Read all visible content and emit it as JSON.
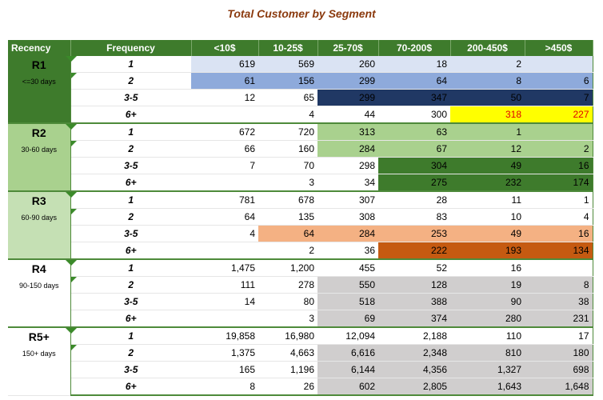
{
  "title": "Total Customer by Segment",
  "headers": [
    "Recency",
    "Frequency",
    "<10$",
    "10-25$",
    "25-70$",
    "70-200$",
    "200-450$",
    ">450$"
  ],
  "groups": [
    {
      "code": "R1",
      "days": "<=30 days",
      "label_bg": "#3e7b2c",
      "label_color": "#000000",
      "rows": [
        {
          "freq": "1",
          "values": [
            "619",
            "569",
            "260",
            "18",
            "2",
            ""
          ],
          "bg": [
            "#dae3f3",
            "#dae3f3",
            "#dae3f3",
            "#dae3f3",
            "#dae3f3",
            "#dae3f3"
          ],
          "fg": [
            "",
            "",
            "",
            "",
            "",
            ""
          ]
        },
        {
          "freq": "2",
          "values": [
            "61",
            "156",
            "299",
            "64",
            "8",
            "6"
          ],
          "bg": [
            "#8eaadb",
            "#8eaadb",
            "#8eaadb",
            "#8eaadb",
            "#8eaadb",
            "#8eaadb"
          ],
          "fg": [
            "",
            "",
            "",
            "",
            "",
            ""
          ]
        },
        {
          "freq": "3-5",
          "values": [
            "12",
            "65",
            "299",
            "347",
            "50",
            "7"
          ],
          "bg": [
            "",
            "",
            "#203864",
            "#203864",
            "#203864",
            "#203864"
          ],
          "fg": [
            "",
            "",
            "",
            "",
            "",
            ""
          ]
        },
        {
          "freq": "6+",
          "values": [
            "",
            "4",
            "44",
            "300",
            "318",
            "227"
          ],
          "bg": [
            "",
            "",
            "",
            "",
            "#ffff00",
            "#ffff00"
          ],
          "fg": [
            "",
            "",
            "",
            "",
            "red",
            "red"
          ]
        }
      ]
    },
    {
      "code": "R2",
      "days": "30-60 days",
      "label_bg": "#a9d18e",
      "label_color": "#000000",
      "rows": [
        {
          "freq": "1",
          "values": [
            "672",
            "720",
            "313",
            "63",
            "1",
            ""
          ],
          "bg": [
            "",
            "",
            "#a9d18e",
            "#a9d18e",
            "#a9d18e",
            "#a9d18e"
          ],
          "fg": [
            "",
            "",
            "",
            "",
            "",
            ""
          ]
        },
        {
          "freq": "2",
          "values": [
            "66",
            "160",
            "284",
            "67",
            "12",
            "2"
          ],
          "bg": [
            "",
            "",
            "#a9d18e",
            "#a9d18e",
            "#a9d18e",
            "#a9d18e"
          ],
          "fg": [
            "",
            "",
            "",
            "",
            "",
            ""
          ]
        },
        {
          "freq": "3-5",
          "values": [
            "7",
            "70",
            "298",
            "304",
            "49",
            "16"
          ],
          "bg": [
            "",
            "",
            "",
            "#3e7b2c",
            "#3e7b2c",
            "#3e7b2c"
          ],
          "fg": [
            "",
            "",
            "",
            "",
            "",
            ""
          ]
        },
        {
          "freq": "6+",
          "values": [
            "",
            "3",
            "34",
            "275",
            "232",
            "174"
          ],
          "bg": [
            "",
            "",
            "",
            "#3e7b2c",
            "#3e7b2c",
            "#3e7b2c"
          ],
          "fg": [
            "",
            "",
            "",
            "",
            "",
            ""
          ]
        }
      ]
    },
    {
      "code": "R3",
      "days": "60-90 days",
      "label_bg": "#c5e0b4",
      "label_color": "#000000",
      "rows": [
        {
          "freq": "1",
          "values": [
            "781",
            "678",
            "307",
            "28",
            "11",
            "1"
          ],
          "bg": [
            "",
            "",
            "",
            "",
            "",
            ""
          ],
          "fg": [
            "",
            "",
            "",
            "",
            "",
            ""
          ]
        },
        {
          "freq": "2",
          "values": [
            "64",
            "135",
            "308",
            "83",
            "10",
            "4"
          ],
          "bg": [
            "",
            "",
            "",
            "",
            "",
            ""
          ],
          "fg": [
            "",
            "",
            "",
            "",
            "",
            ""
          ]
        },
        {
          "freq": "3-5",
          "values": [
            "4",
            "64",
            "284",
            "253",
            "49",
            "16"
          ],
          "bg": [
            "",
            "#f4b183",
            "#f4b183",
            "#f4b183",
            "#f4b183",
            "#f4b183"
          ],
          "fg": [
            "",
            "",
            "",
            "",
            "",
            ""
          ]
        },
        {
          "freq": "6+",
          "values": [
            "",
            "2",
            "36",
            "222",
            "193",
            "134"
          ],
          "bg": [
            "",
            "",
            "",
            "#c55a11",
            "#c55a11",
            "#c55a11"
          ],
          "fg": [
            "",
            "",
            "",
            "",
            "",
            ""
          ]
        }
      ]
    },
    {
      "code": "R4",
      "days": "90-150 days",
      "label_bg": "#ffffff",
      "label_color": "#000000",
      "rows": [
        {
          "freq": "1",
          "values": [
            "1,475",
            "1,200",
            "455",
            "52",
            "16",
            ""
          ],
          "bg": [
            "",
            "",
            "",
            "",
            "",
            ""
          ],
          "fg": [
            "",
            "",
            "",
            "",
            "",
            ""
          ]
        },
        {
          "freq": "2",
          "values": [
            "111",
            "278",
            "550",
            "128",
            "19",
            "8"
          ],
          "bg": [
            "",
            "",
            "#d0cece",
            "#d0cece",
            "#d0cece",
            "#d0cece"
          ],
          "fg": [
            "",
            "",
            "",
            "",
            "",
            ""
          ]
        },
        {
          "freq": "3-5",
          "values": [
            "14",
            "80",
            "518",
            "388",
            "90",
            "38"
          ],
          "bg": [
            "",
            "",
            "#d0cece",
            "#d0cece",
            "#d0cece",
            "#d0cece"
          ],
          "fg": [
            "",
            "",
            "",
            "",
            "",
            ""
          ]
        },
        {
          "freq": "6+",
          "values": [
            "",
            "3",
            "69",
            "374",
            "280",
            "231"
          ],
          "bg": [
            "",
            "",
            "#d0cece",
            "#d0cece",
            "#d0cece",
            "#d0cece"
          ],
          "fg": [
            "",
            "",
            "",
            "",
            "",
            ""
          ]
        }
      ]
    },
    {
      "code": "R5+",
      "days": "150+ days",
      "label_bg": "#ffffff",
      "label_color": "#000000",
      "rows": [
        {
          "freq": "1",
          "values": [
            "19,858",
            "16,980",
            "12,094",
            "2,188",
            "110",
            "17"
          ],
          "bg": [
            "",
            "",
            "",
            "",
            "",
            ""
          ],
          "fg": [
            "",
            "",
            "",
            "",
            "",
            ""
          ]
        },
        {
          "freq": "2",
          "values": [
            "1,375",
            "4,663",
            "6,616",
            "2,348",
            "810",
            "180"
          ],
          "bg": [
            "",
            "",
            "#d0cece",
            "#d0cece",
            "#d0cece",
            "#d0cece"
          ],
          "fg": [
            "",
            "",
            "",
            "",
            "",
            ""
          ]
        },
        {
          "freq": "3-5",
          "values": [
            "165",
            "1,196",
            "6,144",
            "4,356",
            "1,327",
            "698"
          ],
          "bg": [
            "",
            "",
            "#d0cece",
            "#d0cece",
            "#d0cece",
            "#d0cece"
          ],
          "fg": [
            "",
            "",
            "",
            "",
            "",
            ""
          ]
        },
        {
          "freq": "6+",
          "values": [
            "8",
            "26",
            "602",
            "2,805",
            "1,643",
            "1,648"
          ],
          "bg": [
            "",
            "",
            "#d0cece",
            "#d0cece",
            "#d0cece",
            "#d0cece"
          ],
          "fg": [
            "",
            "",
            "",
            "",
            "",
            ""
          ]
        }
      ]
    }
  ]
}
